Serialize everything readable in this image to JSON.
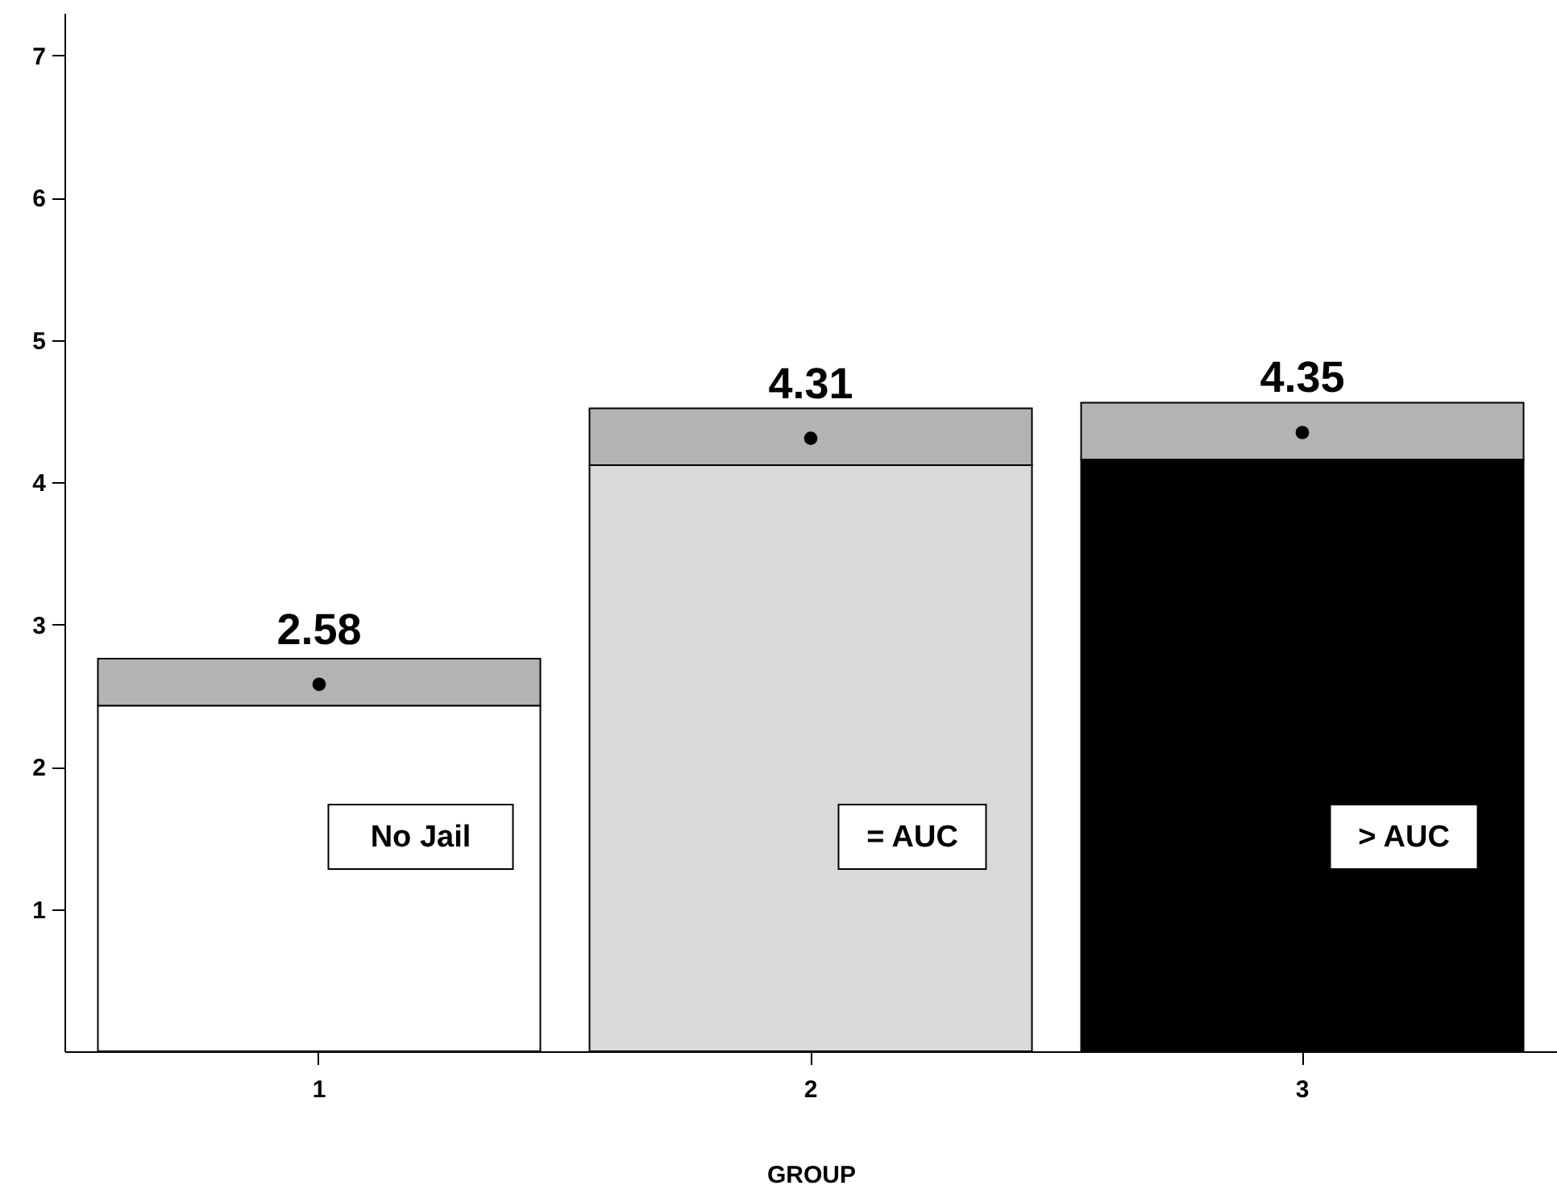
{
  "chart_data": {
    "type": "bar",
    "xlabel": "GROUP",
    "categories": [
      "1",
      "2",
      "3"
    ],
    "stacked": true,
    "ylim": [
      0,
      7.3
    ],
    "yticks": [
      1,
      2,
      3,
      4,
      5,
      6,
      7
    ],
    "grid": false,
    "series": [
      {
        "colors": [
          "#ffffff",
          "#d9d9d9",
          "#000000"
        ],
        "values": [
          2.43,
          4.12,
          4.16
        ]
      },
      {
        "color": "#b3b3b3",
        "values": [
          0.33,
          0.4,
          0.4
        ]
      },
      {
        "type": "scatter",
        "color": "#000000",
        "marker": "circle",
        "x": [
          "1",
          "2",
          "3"
        ],
        "values": [
          2.58,
          4.31,
          4.35
        ],
        "value_labels": [
          "2.58",
          "4.31",
          "4.35"
        ]
      }
    ],
    "annotations": [
      "No Jail",
      "= AUC",
      "> AUC"
    ]
  }
}
